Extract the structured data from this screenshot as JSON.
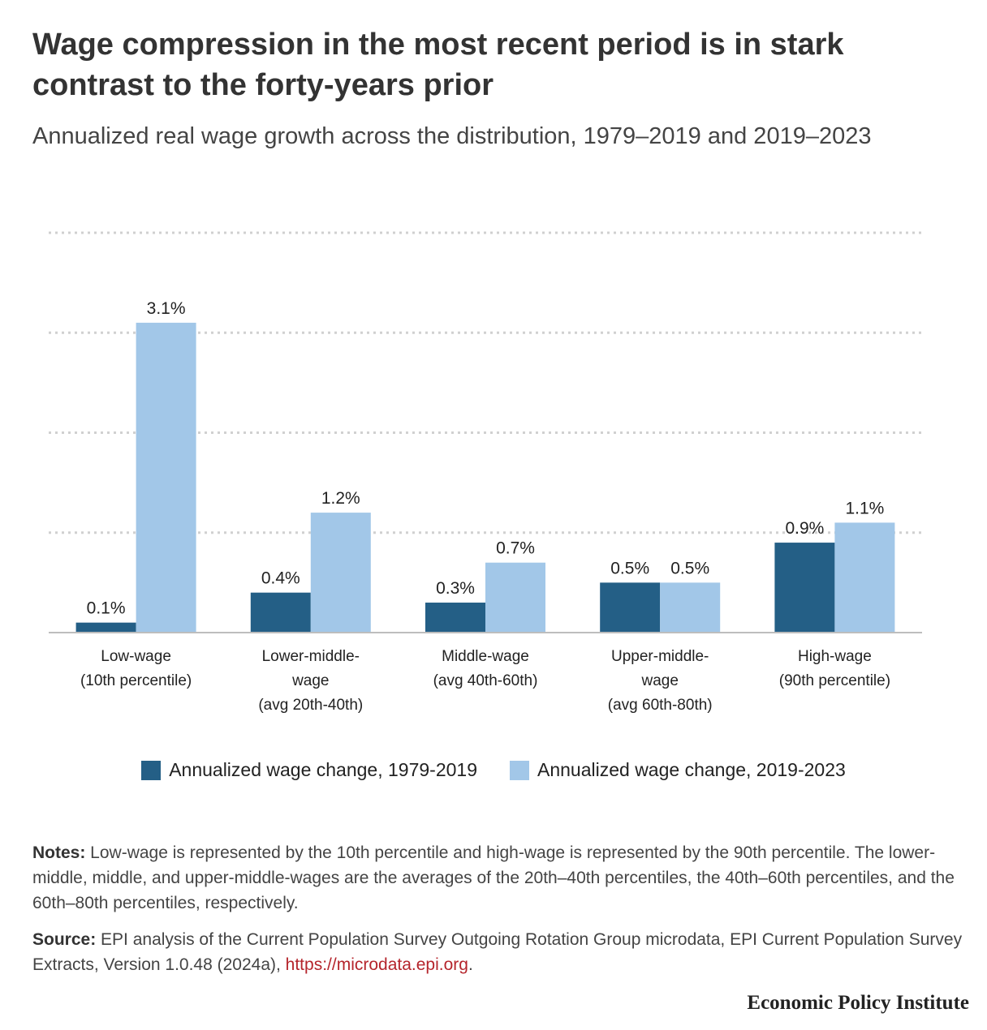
{
  "title": "Wage compression in the most recent period is in stark contrast to the forty-years prior",
  "subtitle": "Annualized real wage growth across the distribution, 1979–2019 and 2019–2023",
  "chart_data": {
    "type": "bar",
    "categories": [
      [
        "Low-wage",
        "(10th percentile)"
      ],
      [
        "Lower-middle-",
        "wage",
        "(avg 20th-40th)"
      ],
      [
        "Middle-wage",
        "(avg 40th-60th)"
      ],
      [
        "Upper-middle-",
        "wage",
        "(avg 60th-80th)"
      ],
      [
        "High-wage",
        "(90th percentile)"
      ]
    ],
    "series": [
      {
        "name": "Annualized wage change, 1979-2019",
        "values": [
          0.1,
          0.4,
          0.3,
          0.5,
          0.9
        ],
        "labels": [
          "0.1%",
          "0.4%",
          "0.3%",
          "0.5%",
          "0.9%"
        ],
        "color": "#245f86"
      },
      {
        "name": "Annualized wage change, 2019-2023",
        "values": [
          3.1,
          1.2,
          0.7,
          0.5,
          1.1
        ],
        "labels": [
          "3.1%",
          "1.2%",
          "0.7%",
          "0.5%",
          "1.1%"
        ],
        "color": "#a2c7e8"
      }
    ],
    "ylim": [
      0,
      4
    ],
    "gridlines": [
      1,
      2,
      3,
      4
    ],
    "grid": true,
    "legend_position": "bottom"
  },
  "notes": {
    "label": "Notes:",
    "text": " Low-wage is represented by the 10th percentile and high-wage is represented by the 90th percentile. The lower-middle, middle, and upper-middle-wages are the averages of the 20th–40th percentiles, the 40th–60th percentiles, and the 60th–80th percentiles, respectively."
  },
  "source": {
    "label": "Source:",
    "text": " EPI analysis of the Current Population Survey Outgoing Rotation Group microdata, EPI Current Population Survey Extracts, Version 1.0.48 (2024a), ",
    "link": "https://microdata.epi.org",
    "end": "."
  },
  "brand": "Economic Policy Institute"
}
